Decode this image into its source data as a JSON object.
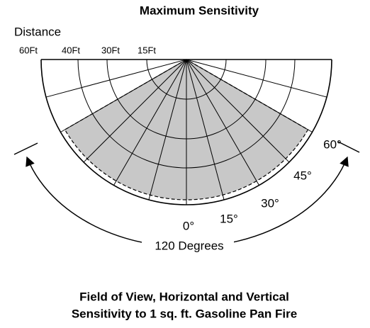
{
  "title": "Maximum Sensitivity",
  "distance_label": "Distance",
  "distances": [
    "60Ft",
    "40Ft",
    "30Ft",
    "15Ft"
  ],
  "angles": [
    "0°",
    "15°",
    "30°",
    "45°",
    "60°"
  ],
  "span_label": "120 Degrees",
  "caption": [
    "Field of View, Horizontal and Vertical",
    "Sensitivity to 1 sq. ft. Gasoline Pan Fire"
  ]
}
